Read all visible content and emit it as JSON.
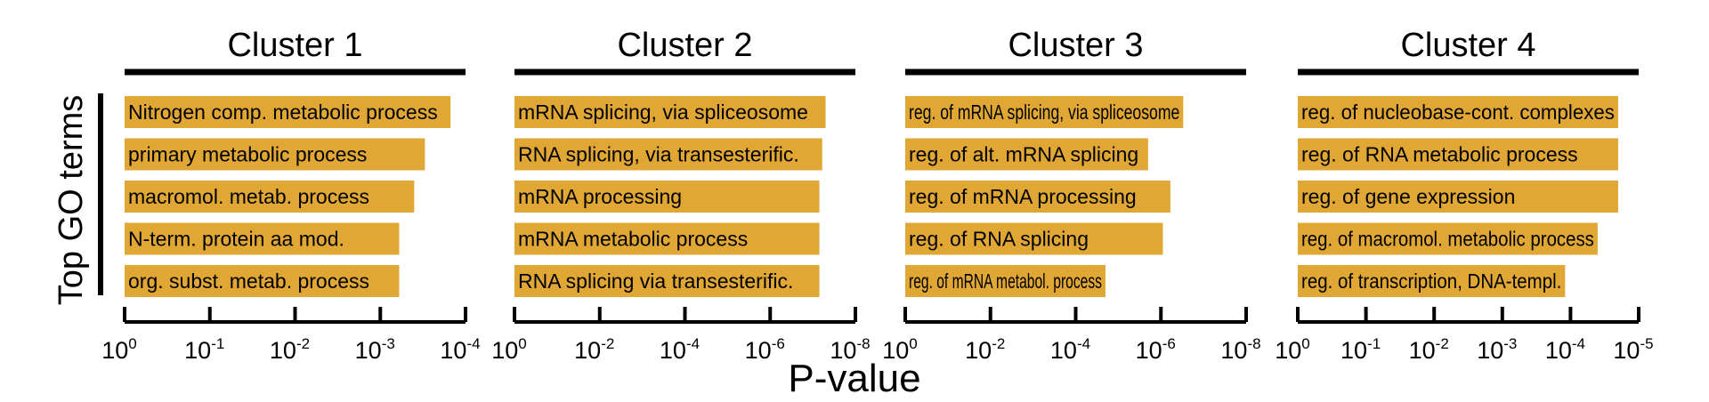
{
  "ylabel": "Top GO terms",
  "xlabel": "P-value",
  "colors": {
    "bar": "#E0A735",
    "axis": "#000000"
  },
  "chart_data": [
    {
      "type": "bar",
      "orientation": "horizontal",
      "title": "Cluster 1",
      "xscale": "log",
      "xlim": [
        1,
        0.0001
      ],
      "xticks": [
        {
          "base": "10",
          "exp": "0"
        },
        {
          "base": "10",
          "exp": "-1"
        },
        {
          "base": "10",
          "exp": "-2"
        },
        {
          "base": "10",
          "exp": "-3"
        },
        {
          "base": "10",
          "exp": "-4"
        }
      ],
      "categories": [
        "Nitrogen comp. metabolic process",
        "primary metabolic process",
        "macromol. metab. process",
        "N-term. protein aa mod.",
        "org. subst. metab. process"
      ],
      "values": [
        0.00015,
        0.0003,
        0.0004,
        0.0006,
        0.0006
      ]
    },
    {
      "type": "bar",
      "orientation": "horizontal",
      "title": "Cluster 2",
      "xscale": "log",
      "xlim": [
        1,
        1e-08
      ],
      "xticks": [
        {
          "base": "10",
          "exp": "0"
        },
        {
          "base": "10",
          "exp": "-2"
        },
        {
          "base": "10",
          "exp": "-4"
        },
        {
          "base": "10",
          "exp": "-6"
        },
        {
          "base": "10",
          "exp": "-8"
        }
      ],
      "categories": [
        "mRNA splicing, via spliceosome",
        "RNA splicing, via transesterific.",
        "mRNA processing",
        "mRNA metabolic process",
        "RNA splicing via transesterific."
      ],
      "values": [
        5e-08,
        6e-08,
        7e-08,
        7e-08,
        7e-08
      ]
    },
    {
      "type": "bar",
      "orientation": "horizontal",
      "title": "Cluster 3",
      "xscale": "log",
      "xlim": [
        1,
        1e-08
      ],
      "xticks": [
        {
          "base": "10",
          "exp": "0"
        },
        {
          "base": "10",
          "exp": "-2"
        },
        {
          "base": "10",
          "exp": "-4"
        },
        {
          "base": "10",
          "exp": "-6"
        },
        {
          "base": "10",
          "exp": "-8"
        }
      ],
      "categories": [
        "reg. of mRNA splicing, via spliceosome",
        "reg. of alt. mRNA splicing",
        "reg. of mRNA processing",
        "reg. of RNA splicing",
        "reg. of mRNA metabol. process"
      ],
      "values": [
        3e-07,
        2e-06,
        6e-07,
        9e-07,
        2e-05
      ]
    },
    {
      "type": "bar",
      "orientation": "horizontal",
      "title": "Cluster 4",
      "xscale": "log",
      "xlim": [
        1,
        1e-05
      ],
      "xticks": [
        {
          "base": "10",
          "exp": "0"
        },
        {
          "base": "10",
          "exp": "-1"
        },
        {
          "base": "10",
          "exp": "-2"
        },
        {
          "base": "10",
          "exp": "-3"
        },
        {
          "base": "10",
          "exp": "-4"
        },
        {
          "base": "10",
          "exp": "-5"
        }
      ],
      "categories": [
        "reg. of nucleobase-cont. complexes",
        "reg. of RNA metabolic process",
        "reg. of gene expression",
        "reg. of macromol. metabolic process",
        "reg. of transcription, DNA-templ."
      ],
      "values": [
        2e-05,
        2e-05,
        2e-05,
        4e-05,
        0.00012
      ]
    }
  ]
}
